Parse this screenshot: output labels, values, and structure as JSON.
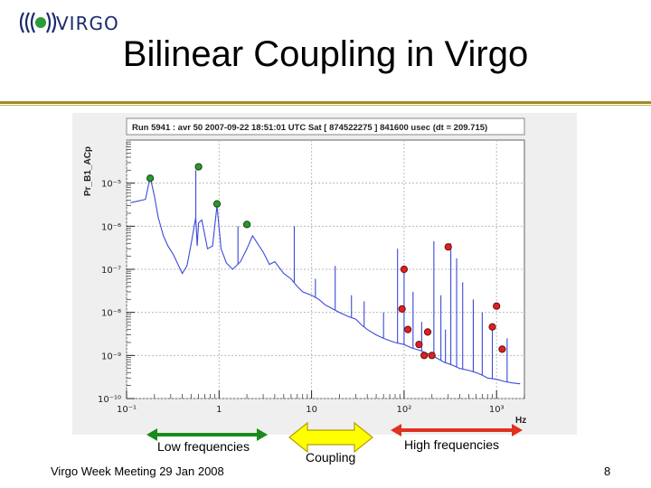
{
  "header": {
    "logo_text": "VIRGO",
    "title": "Bilinear Coupling in Virgo"
  },
  "footer": {
    "left": "Virgo Week Meeting 29 Jan 2008",
    "page_number": "8"
  },
  "annotations": {
    "low": "Low frequencies",
    "coupling": "Coupling",
    "high": "High frequencies",
    "low_color": "#1a8a1a",
    "coupling_color": "#ffff00",
    "high_color": "#e03020"
  },
  "chart_data": {
    "type": "line",
    "title": "Run 5941 : avr 50 2007-09-22 18:51:01 UTC Sat [ 874522275 ] 841600 usec (dt = 209.715)",
    "xlabel": "Hz",
    "ylabel": "Pr_B1_ACp",
    "x_scale": "log",
    "y_scale": "log",
    "xlim": [
      0.1,
      2000
    ],
    "ylim": [
      1e-10,
      0.0001
    ],
    "grid": true,
    "x_ticks": [
      "10⁻¹",
      "1",
      "10",
      "10²",
      "10³"
    ],
    "y_ticks": [
      "10⁻⁵",
      "10⁻⁶",
      "10⁻⁷",
      "10⁻⁸",
      "10⁻⁹",
      "10⁻¹⁰"
    ],
    "series": [
      {
        "color": "#3a4ad8",
        "x": [
          0.11,
          0.13,
          0.16,
          0.18,
          0.2,
          0.22,
          0.25,
          0.28,
          0.32,
          0.36,
          0.4,
          0.45,
          0.5,
          0.56,
          0.58,
          0.6,
          0.65,
          0.75,
          0.85,
          0.95,
          1.05,
          1.2,
          1.4,
          1.7,
          2.0,
          2.3,
          2.6,
          3.0,
          3.5,
          4.0,
          5.0,
          6.0,
          7.0,
          8.0,
          10,
          12,
          14,
          17,
          20,
          25,
          30,
          35,
          40,
          50,
          60,
          70,
          80,
          100,
          120,
          150,
          180,
          220,
          270,
          330,
          400,
          500,
          600,
          700,
          800,
          1000,
          1200,
          1500,
          1800
        ],
        "y": [
          3.5e-06,
          3.8e-06,
          4.2e-06,
          1.4e-05,
          5e-06,
          1.6e-06,
          6e-07,
          3.5e-07,
          2.2e-07,
          1.3e-07,
          8e-08,
          1.2e-07,
          4e-07,
          1.6e-06,
          3.5e-07,
          1.2e-06,
          1.4e-06,
          3e-07,
          3.5e-07,
          3e-06,
          3e-07,
          1.4e-07,
          1e-07,
          1.5e-07,
          3e-07,
          6e-07,
          4e-07,
          2.5e-07,
          1.3e-07,
          1.5e-07,
          8e-08,
          6e-08,
          4e-08,
          3e-08,
          2.5e-08,
          2e-08,
          1.5e-08,
          1.2e-08,
          1e-08,
          8e-09,
          7e-09,
          5e-09,
          4e-09,
          3e-09,
          2.5e-09,
          2.2e-09,
          2e-09,
          1.8e-09,
          1.5e-09,
          1.3e-09,
          1.1e-09,
          9e-10,
          7e-10,
          6e-10,
          5e-10,
          4.5e-10,
          4e-10,
          3.5e-10,
          3e-10,
          2.8e-10,
          2.5e-10,
          2.3e-10,
          2.2e-10
        ]
      }
    ],
    "spike_lines": [
      {
        "x": 0.56,
        "y": 2e-05
      },
      {
        "x": 1.6,
        "y": 1e-06
      },
      {
        "x": 6.5,
        "y": 1e-06
      },
      {
        "x": 11,
        "y": 6e-08
      },
      {
        "x": 18,
        "y": 1.2e-07
      },
      {
        "x": 27,
        "y": 2.5e-08
      },
      {
        "x": 37,
        "y": 1.8e-08
      },
      {
        "x": 60,
        "y": 1e-08
      },
      {
        "x": 85,
        "y": 3e-07
      },
      {
        "x": 100,
        "y": 1e-07
      },
      {
        "x": 125,
        "y": 3e-08
      },
      {
        "x": 155,
        "y": 6e-09
      },
      {
        "x": 170,
        "y": 1e-09
      },
      {
        "x": 210,
        "y": 4.5e-07
      },
      {
        "x": 250,
        "y": 2.5e-08
      },
      {
        "x": 280,
        "y": 4e-09
      },
      {
        "x": 320,
        "y": 4e-07
      },
      {
        "x": 370,
        "y": 1.8e-07
      },
      {
        "x": 430,
        "y": 5e-08
      },
      {
        "x": 560,
        "y": 2e-08
      },
      {
        "x": 700,
        "y": 1e-08
      },
      {
        "x": 900,
        "y": 5e-09
      },
      {
        "x": 1300,
        "y": 2.5e-09
      }
    ],
    "markers_low": [
      {
        "x": 0.18,
        "y": 1.3e-05
      },
      {
        "x": 0.6,
        "y": 2.4e-05
      },
      {
        "x": 0.95,
        "y": 3.3e-06
      },
      {
        "x": 2.0,
        "y": 1.1e-06
      }
    ],
    "markers_high": [
      {
        "x": 100,
        "y": 1e-07
      },
      {
        "x": 95,
        "y": 1.2e-08
      },
      {
        "x": 110,
        "y": 4e-09
      },
      {
        "x": 145,
        "y": 1.8e-09
      },
      {
        "x": 165,
        "y": 1e-09
      },
      {
        "x": 180,
        "y": 3.5e-09
      },
      {
        "x": 200,
        "y": 1e-09
      },
      {
        "x": 300,
        "y": 3.3e-07
      },
      {
        "x": 900,
        "y": 4.6e-09
      },
      {
        "x": 1000,
        "y": 1.4e-08
      },
      {
        "x": 1150,
        "y": 1.4e-09
      }
    ]
  }
}
